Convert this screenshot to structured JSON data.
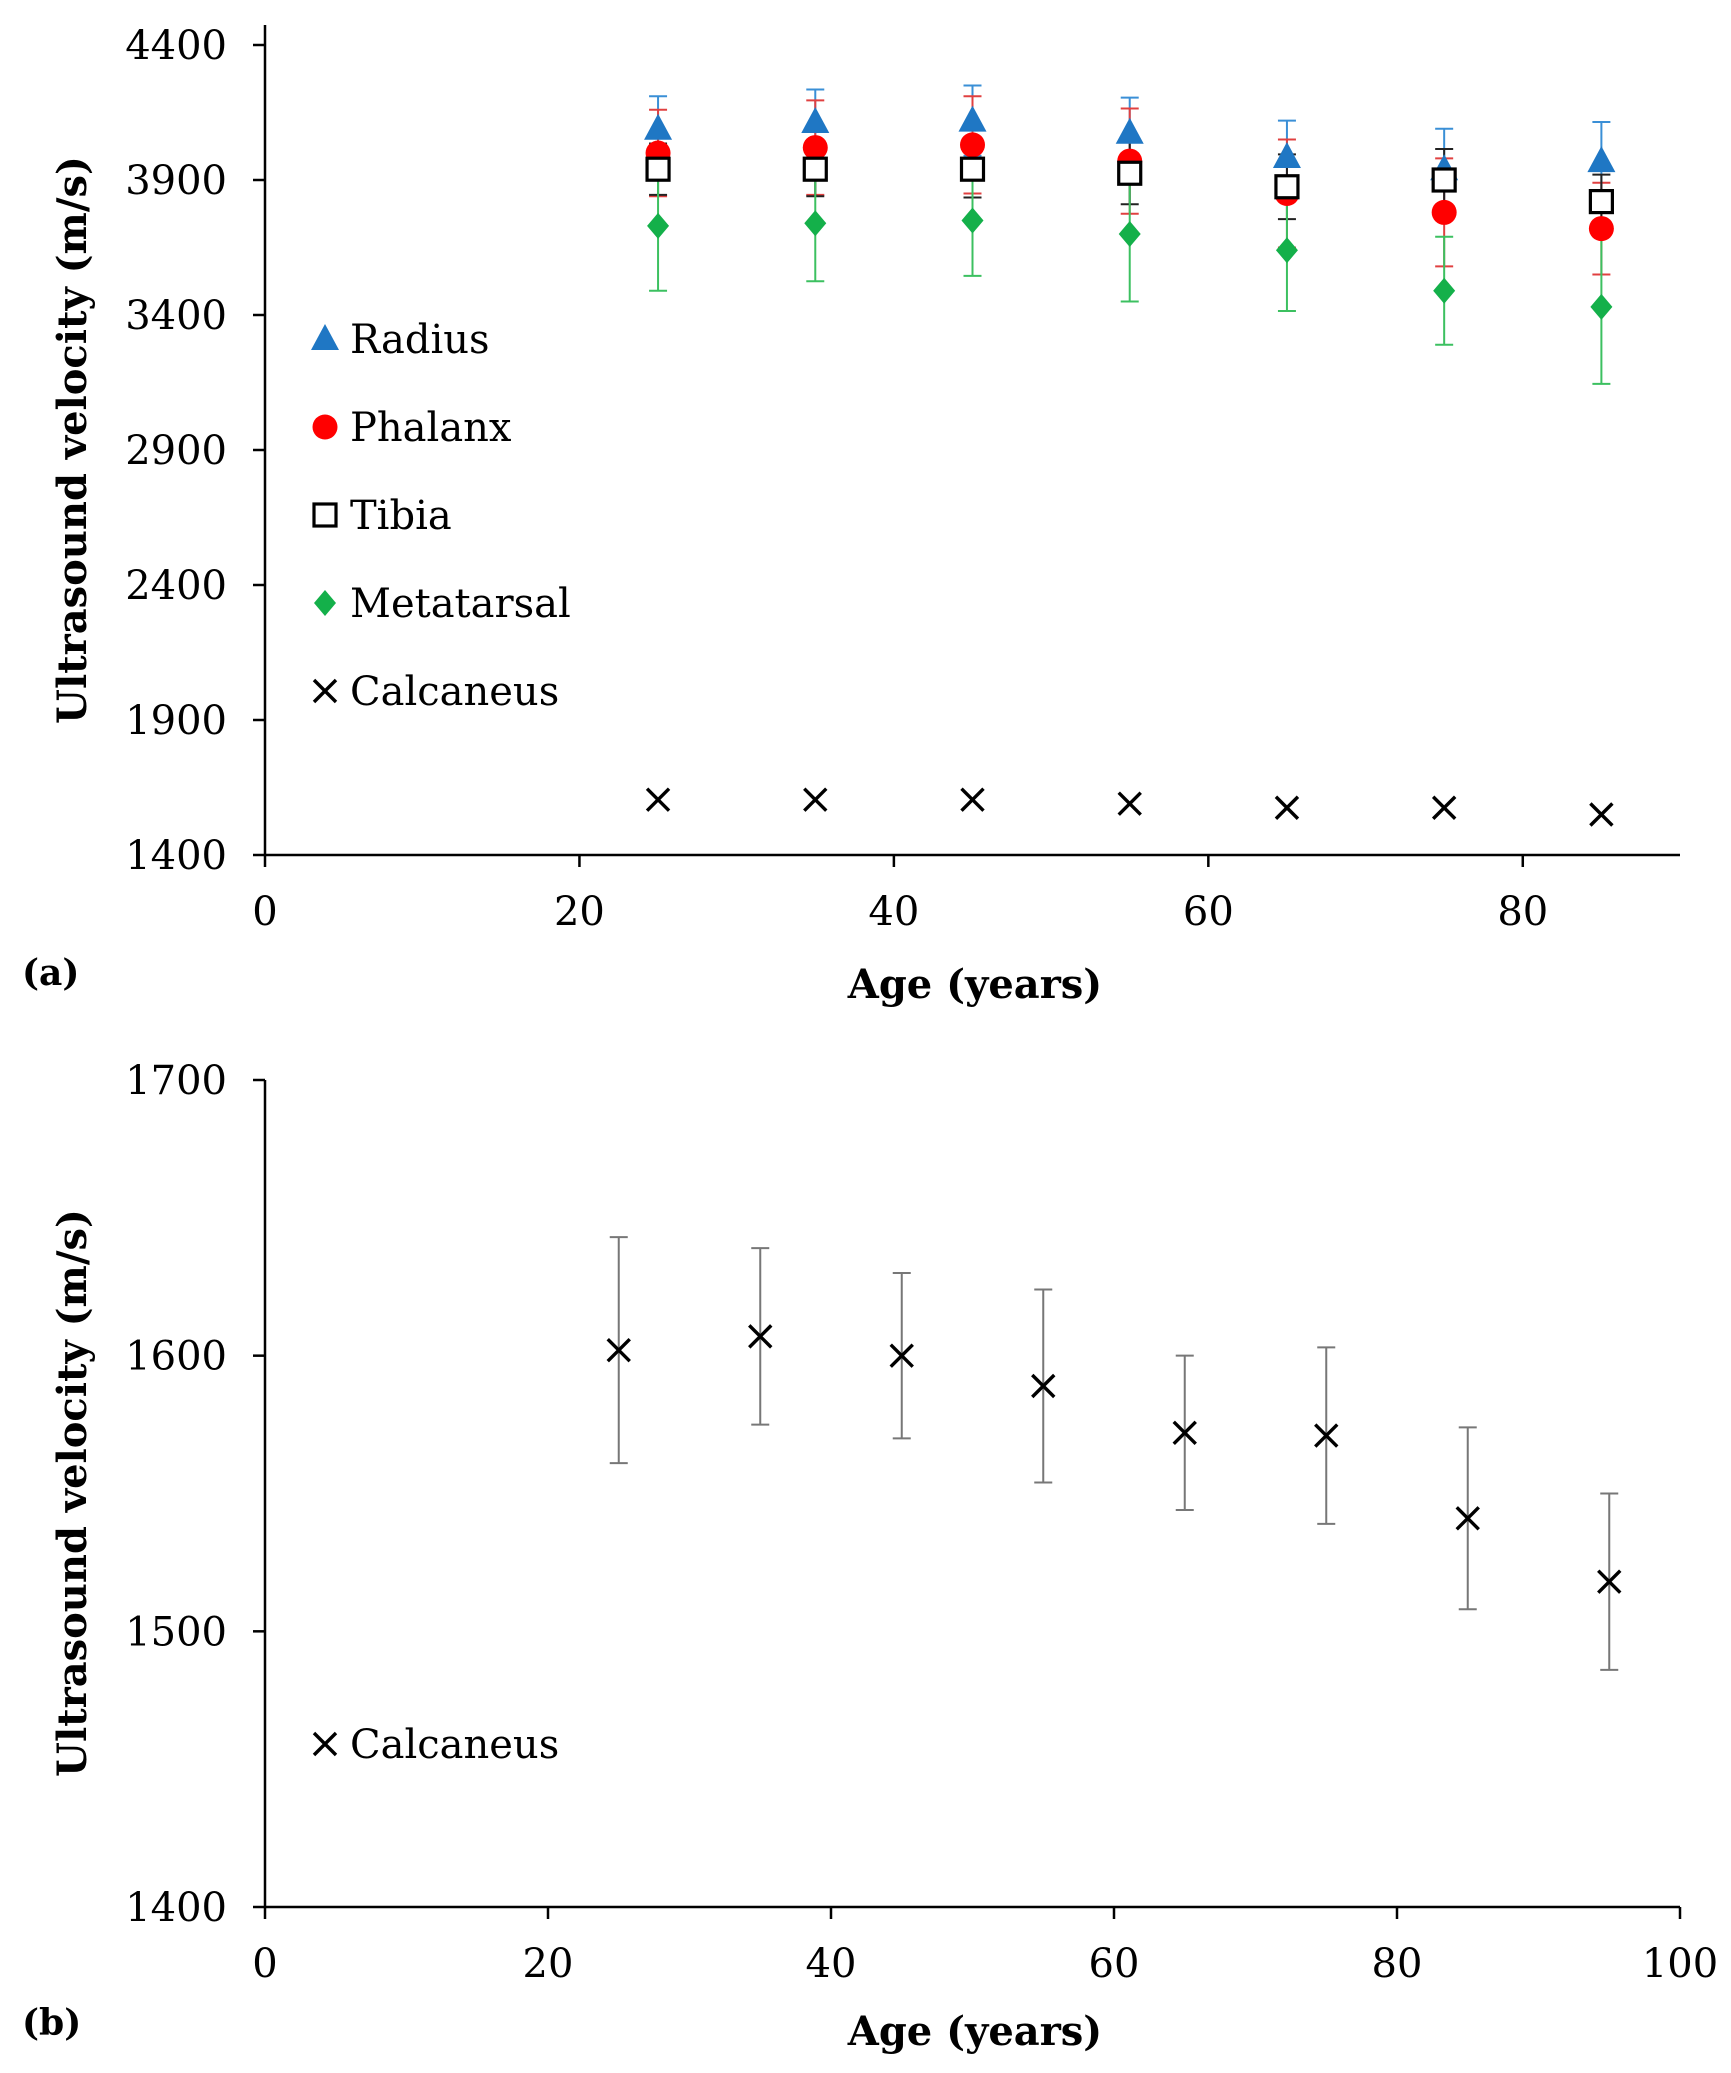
{
  "chart_data": [
    {
      "panel": "(a)",
      "type": "scatter",
      "xlabel": "Age (years)",
      "ylabel": "Ultrasound velocity (m/s)",
      "xlim": [
        0,
        90
      ],
      "ylim": [
        1400,
        4400
      ],
      "xticks": [
        0,
        20,
        40,
        60,
        80
      ],
      "yticks": [
        1400,
        1900,
        2400,
        2900,
        3400,
        3900,
        4400
      ],
      "legend": "left",
      "series": [
        {
          "name": "Radius",
          "marker": "triangle",
          "color": "#1f77c4",
          "x": [
            25,
            35,
            45,
            55,
            65,
            75,
            85
          ],
          "y": [
            4090,
            4115,
            4120,
            4075,
            3985,
            3940,
            3970
          ],
          "err": [
            120,
            120,
            130,
            130,
            135,
            150,
            145
          ]
        },
        {
          "name": "Phalanx",
          "marker": "circle",
          "color": "#ff0000",
          "x": [
            25,
            35,
            45,
            55,
            65,
            75,
            85
          ],
          "y": [
            4000,
            4020,
            4030,
            3970,
            3850,
            3780,
            3720
          ],
          "err": [
            160,
            175,
            180,
            195,
            200,
            200,
            170
          ]
        },
        {
          "name": "Tibia",
          "marker": "open-square",
          "color": "#000000",
          "x": [
            25,
            35,
            45,
            55,
            65,
            75,
            85
          ],
          "y": [
            3940,
            3940,
            3940,
            3925,
            3875,
            3900,
            3820
          ],
          "err": [
            95,
            100,
            105,
            115,
            120,
            115,
            100
          ]
        },
        {
          "name": "Metatarsal",
          "marker": "diamond",
          "color": "#14b04a",
          "x": [
            25,
            35,
            45,
            55,
            65,
            75,
            85
          ],
          "y": [
            3730,
            3740,
            3750,
            3700,
            3640,
            3490,
            3430
          ],
          "err": [
            240,
            215,
            205,
            250,
            225,
            200,
            285
          ]
        },
        {
          "name": "Calcaneus",
          "marker": "x",
          "color": "#000000",
          "x": [
            25,
            35,
            45,
            55,
            65,
            75,
            85
          ],
          "y": [
            1605,
            1605,
            1605,
            1590,
            1575,
            1575,
            1550
          ],
          "err": [
            0,
            0,
            0,
            0,
            0,
            0,
            0
          ]
        }
      ]
    },
    {
      "panel": "(b)",
      "type": "scatter",
      "xlabel": "Age (years)",
      "ylabel": "Ultrasound velocity (m/s)",
      "xlim": [
        0,
        100
      ],
      "ylim": [
        1400,
        1700
      ],
      "xticks": [
        0,
        20,
        40,
        60,
        80,
        100
      ],
      "yticks": [
        1400,
        1500,
        1600,
        1700
      ],
      "legend": "left",
      "series": [
        {
          "name": "Calcaneus",
          "marker": "x",
          "color": "#000000",
          "x": [
            25,
            35,
            45,
            55,
            65,
            75,
            85,
            95
          ],
          "y": [
            1602,
            1607,
            1600,
            1589,
            1572,
            1571,
            1541,
            1518
          ],
          "err": [
            41,
            32,
            30,
            35,
            28,
            32,
            33,
            32
          ]
        }
      ]
    }
  ]
}
